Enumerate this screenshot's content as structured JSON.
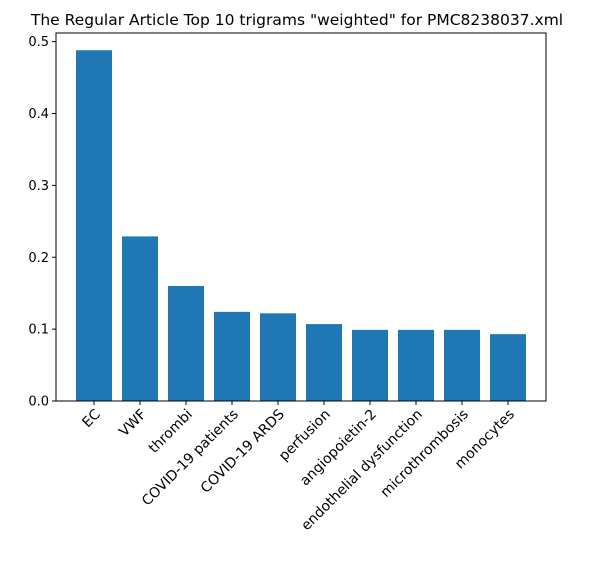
{
  "chart_data": {
    "type": "bar",
    "title": "The Regular Article Top 10 trigrams \"weighted\"  for PMC8238037.xml",
    "xlabel": "",
    "ylabel": "",
    "categories": [
      "EC",
      "VWF",
      "thrombi",
      "COVID-19 patients",
      "COVID-19 ARDS",
      "perfusion",
      "angiopoietin-2",
      "endothelial dysfunction",
      "microthrombosis",
      "monocytes"
    ],
    "values": [
      0.488,
      0.229,
      0.16,
      0.124,
      0.122,
      0.107,
      0.099,
      0.099,
      0.099,
      0.093
    ],
    "ylim": [
      0,
      0.512
    ],
    "yticks": [
      "0.0",
      "0.1",
      "0.2",
      "0.3",
      "0.4",
      "0.5"
    ],
    "bar_color": "#1f77b4",
    "grid": false,
    "legend": "none"
  }
}
